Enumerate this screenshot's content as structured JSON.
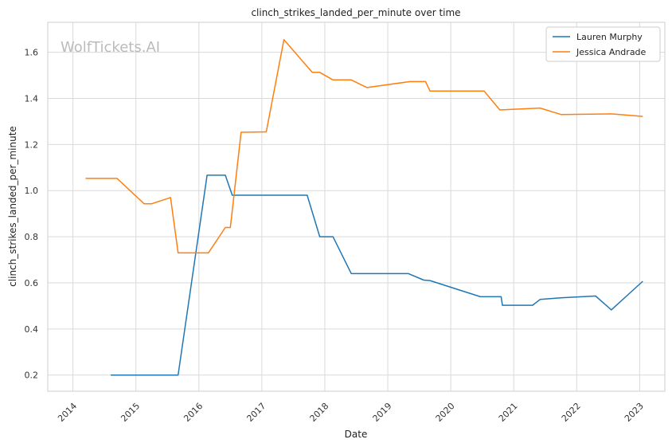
{
  "chart_data": {
    "type": "line",
    "title": "clinch_strikes_landed_per_minute over time",
    "xlabel": "Date",
    "ylabel": "clinch_strikes_landed_per_minute",
    "watermark": "WolfTickets.AI",
    "x_ticks": [
      "2014",
      "2015",
      "2016",
      "2017",
      "2018",
      "2019",
      "2020",
      "2021",
      "2022",
      "2023"
    ],
    "y_ticks": [
      0.2,
      0.4,
      0.6,
      0.8,
      1.0,
      1.2,
      1.4,
      1.6
    ],
    "xlim": [
      2013.6,
      2023.4
    ],
    "ylim": [
      0.13,
      1.73
    ],
    "grid": true,
    "legend_position": "top-right",
    "series": [
      {
        "name": "Lauren Murphy",
        "color": "#1f77b4",
        "points": [
          [
            2014.6,
            0.2
          ],
          [
            2015.0,
            0.2
          ],
          [
            2015.67,
            0.2
          ],
          [
            2016.13,
            1.067
          ],
          [
            2016.42,
            1.067
          ],
          [
            2016.53,
            0.98
          ],
          [
            2017.72,
            0.98
          ],
          [
            2017.92,
            0.8
          ],
          [
            2018.13,
            0.8
          ],
          [
            2018.42,
            0.64
          ],
          [
            2019.33,
            0.64
          ],
          [
            2019.57,
            0.612
          ],
          [
            2019.67,
            0.61
          ],
          [
            2020.47,
            0.54
          ],
          [
            2020.8,
            0.54
          ],
          [
            2020.82,
            0.503
          ],
          [
            2021.3,
            0.503
          ],
          [
            2021.42,
            0.528
          ],
          [
            2021.75,
            0.535
          ],
          [
            2022.3,
            0.543
          ],
          [
            2022.55,
            0.483
          ],
          [
            2023.05,
            0.607
          ]
        ]
      },
      {
        "name": "Jessica Andrade",
        "color": "#ff7f0e",
        "points": [
          [
            2014.2,
            1.053
          ],
          [
            2014.7,
            1.053
          ],
          [
            2015.13,
            0.943
          ],
          [
            2015.25,
            0.943
          ],
          [
            2015.55,
            0.97
          ],
          [
            2015.67,
            0.73
          ],
          [
            2016.15,
            0.73
          ],
          [
            2016.42,
            0.84
          ],
          [
            2016.5,
            0.84
          ],
          [
            2016.67,
            1.253
          ],
          [
            2017.07,
            1.255
          ],
          [
            2017.35,
            1.655
          ],
          [
            2017.8,
            1.513
          ],
          [
            2017.92,
            1.513
          ],
          [
            2018.13,
            1.48
          ],
          [
            2018.42,
            1.48
          ],
          [
            2018.67,
            1.447
          ],
          [
            2019.35,
            1.473
          ],
          [
            2019.6,
            1.473
          ],
          [
            2019.67,
            1.432
          ],
          [
            2020.53,
            1.432
          ],
          [
            2020.78,
            1.35
          ],
          [
            2021.42,
            1.358
          ],
          [
            2021.75,
            1.33
          ],
          [
            2022.55,
            1.333
          ],
          [
            2023.05,
            1.322
          ]
        ]
      }
    ]
  }
}
